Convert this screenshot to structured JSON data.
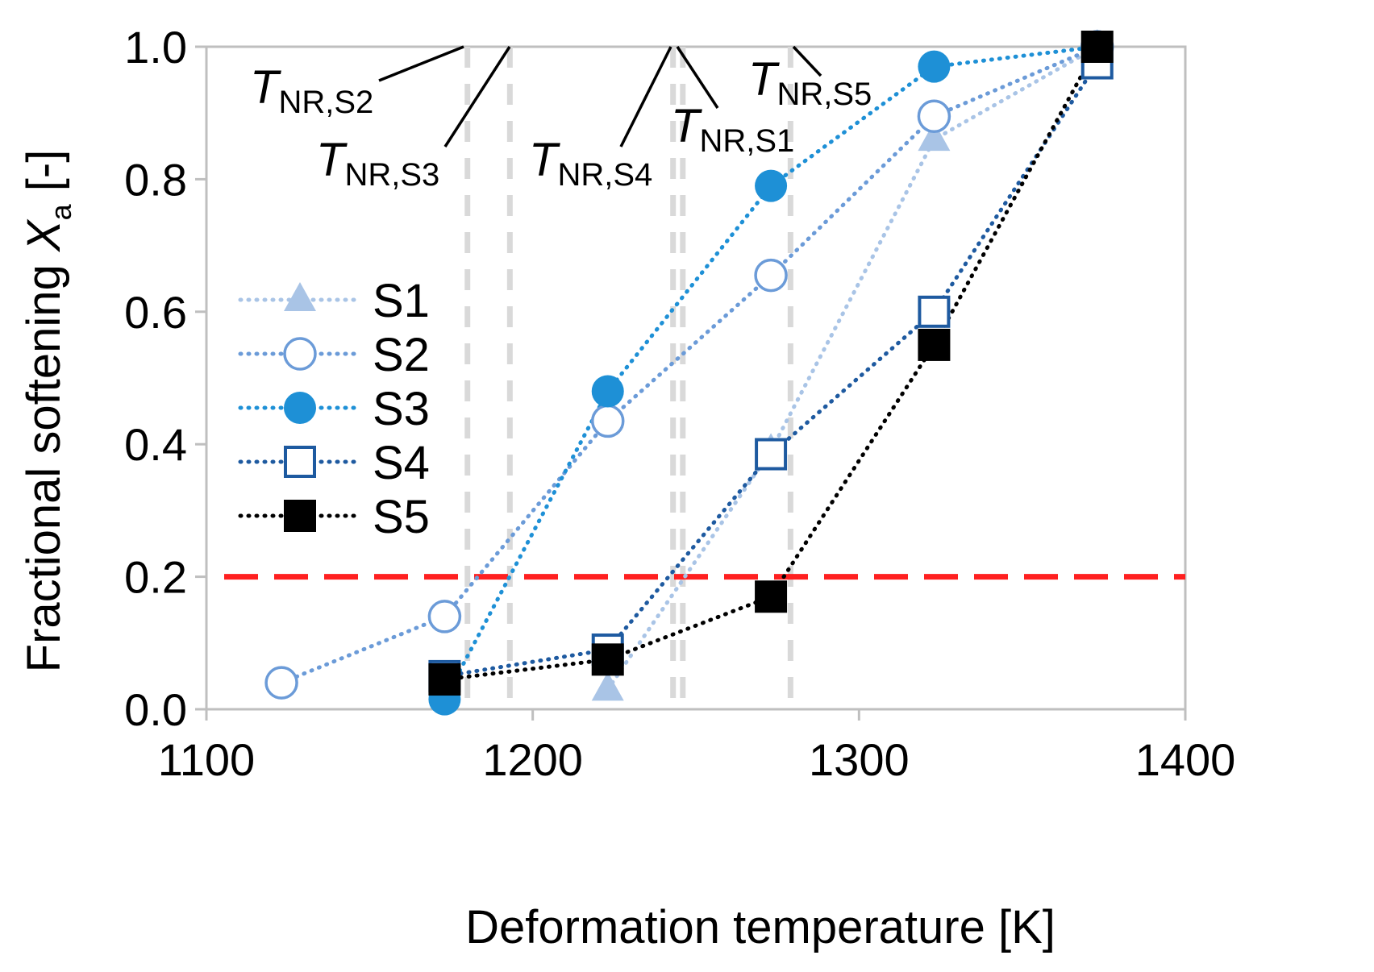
{
  "chart_data": {
    "type": "line",
    "xlabel": "Deformation temperature [K]",
    "ylabel": {
      "prefix": "Fractional softening ",
      "symbol": "X",
      "sub": "a",
      "suffix": " [-]"
    },
    "xlim": [
      1100,
      1400
    ],
    "ylim": [
      0,
      1.0
    ],
    "x_ticks": [
      1100,
      1200,
      1300,
      1400
    ],
    "x_tick_labels": [
      "1100",
      "1200",
      "1300",
      "1400"
    ],
    "y_ticks": [
      0,
      0.2,
      0.4,
      0.6,
      0.8,
      1.0
    ],
    "y_tick_labels": [
      "0.0",
      "0.2",
      "0.4",
      "0.6",
      "0.8",
      "1.0"
    ],
    "grid": false,
    "legend_position": "center-left",
    "series": [
      {
        "name": "S1",
        "marker": "triangle",
        "color": "#a9c4e6",
        "x": [
          1223,
          1273,
          1323,
          1373
        ],
        "values": [
          0.03,
          0.39,
          0.86,
          1.0
        ]
      },
      {
        "name": "S2",
        "marker": "open-circle",
        "color": "#6b9bd8",
        "x": [
          1123,
          1173,
          1223,
          1273,
          1323,
          1373
        ],
        "values": [
          0.04,
          0.14,
          0.435,
          0.655,
          0.895,
          1.0
        ]
      },
      {
        "name": "S3",
        "marker": "filled-circle",
        "color": "#1e90d6",
        "x": [
          1173,
          1223,
          1273,
          1323,
          1373
        ],
        "values": [
          0.015,
          0.48,
          0.79,
          0.97,
          1.0
        ]
      },
      {
        "name": "S4",
        "marker": "open-square",
        "color": "#1e5aa0",
        "x": [
          1173,
          1223,
          1273,
          1323,
          1373
        ],
        "values": [
          0.05,
          0.09,
          0.385,
          0.6,
          0.975
        ]
      },
      {
        "name": "S5",
        "marker": "filled-square",
        "color": "#000000",
        "x": [
          1173,
          1223,
          1273,
          1323,
          1373
        ],
        "values": [
          0.045,
          0.075,
          0.17,
          0.55,
          1.0
        ]
      }
    ],
    "threshold": {
      "y": 0.2,
      "color": "#ff2020",
      "style": "dashed"
    },
    "nr_temperatures": [
      {
        "name": "S2",
        "label_main": "T",
        "label_sub": "NR,S2",
        "x": 1180
      },
      {
        "name": "S3",
        "label_main": "T",
        "label_sub": "NR,S3",
        "x": 1193
      },
      {
        "name": "S4",
        "label_main": "T",
        "label_sub": "NR,S4",
        "x": 1243
      },
      {
        "name": "S1",
        "label_main": "T",
        "label_sub": "NR,S1",
        "x": 1246
      },
      {
        "name": "S5",
        "label_main": "T",
        "label_sub": "NR,S5",
        "x": 1279
      }
    ],
    "vline_color": "#d9d9d9",
    "axis_color": "#bfbfbf"
  }
}
